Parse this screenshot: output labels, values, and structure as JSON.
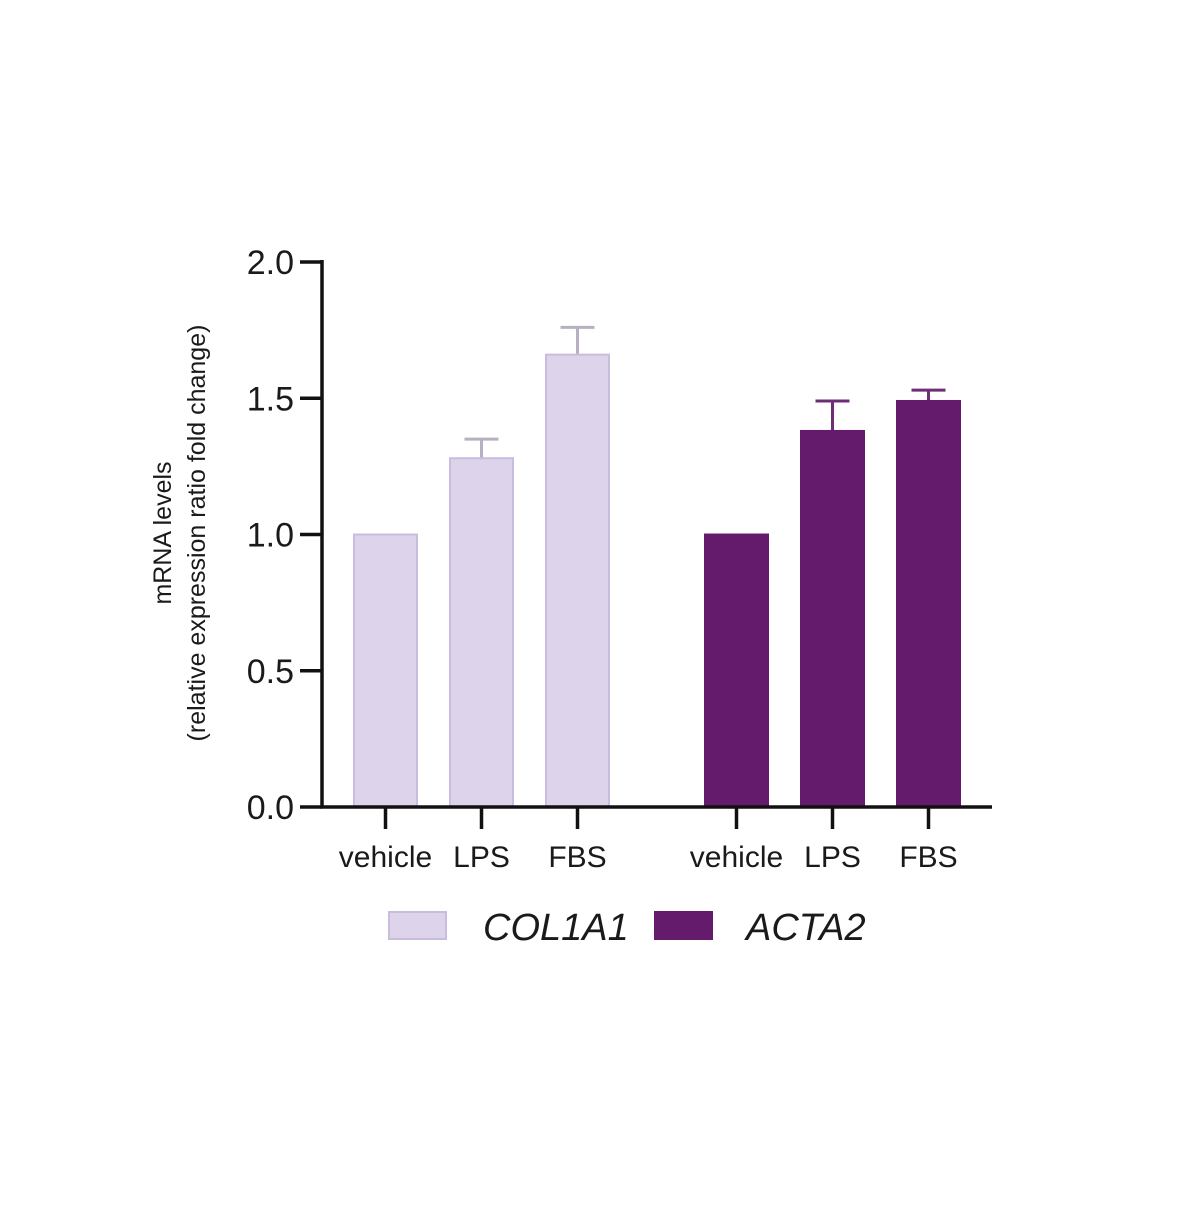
{
  "chart_data": {
    "type": "bar",
    "title": "",
    "xlabel": "",
    "ylabel": [
      "mRNA levels",
      "(relative expression ratio fold change)"
    ],
    "ylim": [
      0,
      2.0
    ],
    "yticks": [
      0.0,
      0.5,
      1.0,
      1.5,
      2.0
    ],
    "ytick_labels": [
      "0.0",
      "0.5",
      "1.0",
      "1.5",
      "2.0"
    ],
    "grid": false,
    "legend_position": "bottom",
    "groups": [
      {
        "name": "COL1A1",
        "color": "#ddd3ea",
        "edge_color": "#c9bddc",
        "error_color": "#b8b0c2",
        "categories": [
          "vehicle",
          "LPS",
          "FBS"
        ],
        "values": [
          1.0,
          1.28,
          1.66
        ],
        "errors": [
          0.0,
          0.07,
          0.1
        ]
      },
      {
        "name": "ACTA2",
        "color": "#641b6c",
        "edge_color": "#641b6c",
        "error_color": "#6e2d75",
        "categories": [
          "vehicle",
          "LPS",
          "FBS"
        ],
        "values": [
          1.0,
          1.38,
          1.49
        ],
        "errors": [
          0.0,
          0.11,
          0.04
        ]
      }
    ]
  }
}
